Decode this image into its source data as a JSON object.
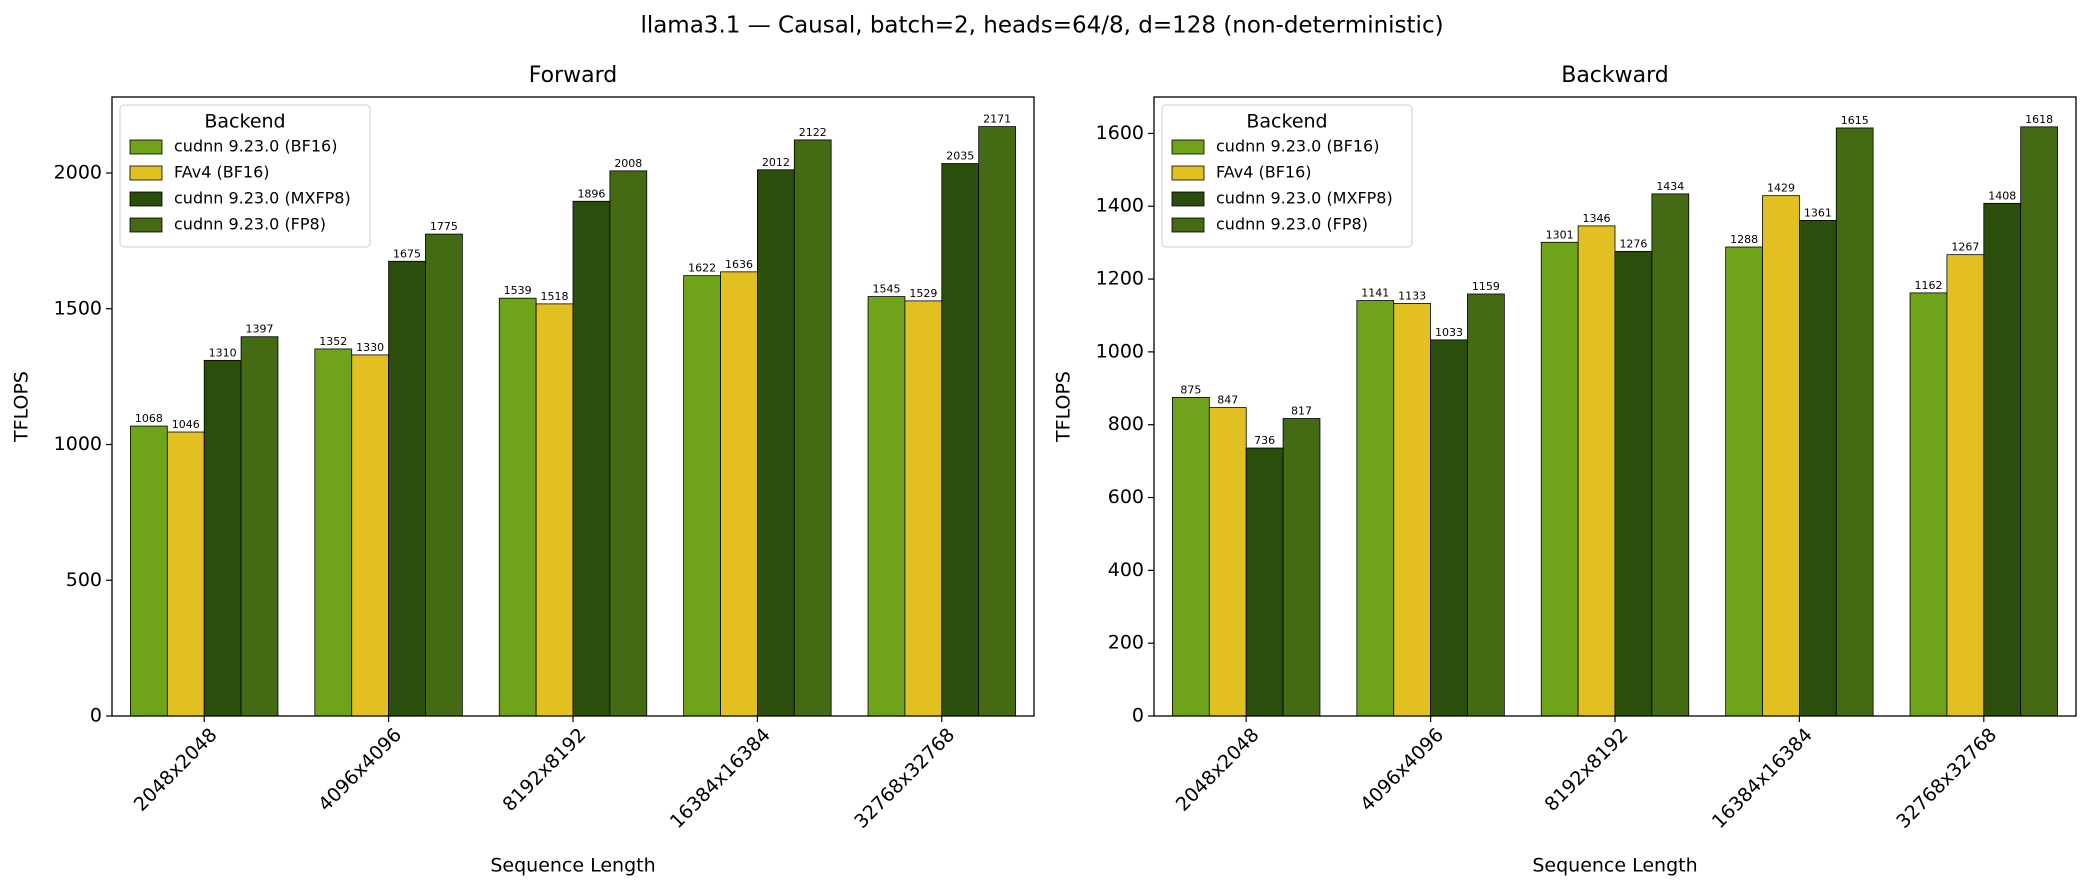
{
  "title": "llama3.1 — Causal, batch=2, heads=64/8, d=128 (non-deterministic)",
  "chart_data": [
    {
      "type": "bar",
      "title": "Forward",
      "xlabel": "Sequence Length",
      "ylabel": "TFLOPS",
      "categories": [
        "2048x2048",
        "4096x4096",
        "8192x8192",
        "16384x16384",
        "32768x32768"
      ],
      "series": [
        {
          "name": "cudnn 9.23.0 (BF16)",
          "color": "#6fa41a",
          "values": [
            1068,
            1352,
            1539,
            1622,
            1545
          ]
        },
        {
          "name": "FAv4 (BF16)",
          "color": "#e2c021",
          "values": [
            1046,
            1330,
            1518,
            1636,
            1529
          ]
        },
        {
          "name": "cudnn 9.23.0 (MXFP8)",
          "color": "#2c4e0d",
          "values": [
            1310,
            1675,
            1896,
            2012,
            2035
          ]
        },
        {
          "name": "cudnn 9.23.0 (FP8)",
          "color": "#456a14",
          "values": [
            1397,
            1775,
            2008,
            2122,
            2171
          ]
        }
      ],
      "ylim": [
        0,
        2280
      ],
      "yticks": [
        0,
        500,
        1000,
        1500,
        2000
      ],
      "legend_title": "Backend",
      "legend": "upper left"
    },
    {
      "type": "bar",
      "title": "Backward",
      "xlabel": "Sequence Length",
      "ylabel": "TFLOPS",
      "categories": [
        "2048x2048",
        "4096x4096",
        "8192x8192",
        "16384x16384",
        "32768x32768"
      ],
      "series": [
        {
          "name": "cudnn 9.23.0 (BF16)",
          "color": "#6fa41a",
          "values": [
            875,
            1141,
            1301,
            1288,
            1162
          ]
        },
        {
          "name": "FAv4 (BF16)",
          "color": "#e2c021",
          "values": [
            847,
            1133,
            1346,
            1429,
            1267
          ]
        },
        {
          "name": "cudnn 9.23.0 (MXFP8)",
          "color": "#2c4e0d",
          "values": [
            736,
            1033,
            1276,
            1361,
            1408
          ]
        },
        {
          "name": "cudnn 9.23.0 (FP8)",
          "color": "#456a14",
          "values": [
            817,
            1159,
            1434,
            1615,
            1618
          ]
        }
      ],
      "ylim": [
        0,
        1700
      ],
      "yticks": [
        0,
        200,
        400,
        600,
        800,
        1000,
        1200,
        1400,
        1600
      ],
      "legend_title": "Backend",
      "legend": "upper left"
    }
  ]
}
